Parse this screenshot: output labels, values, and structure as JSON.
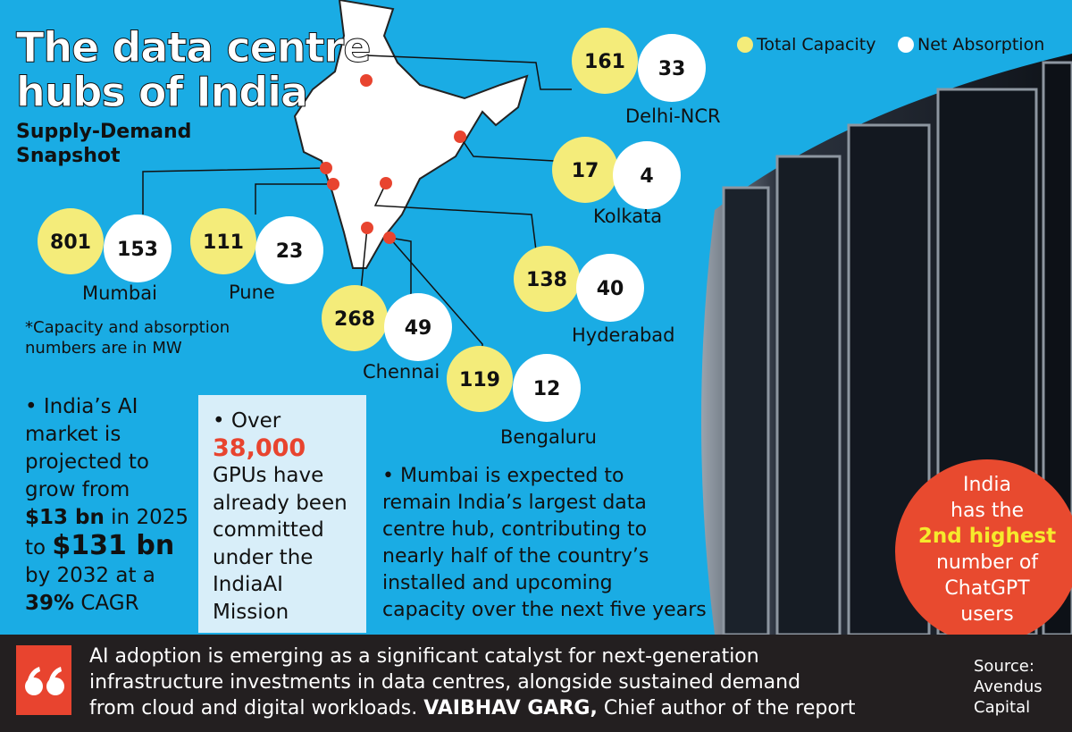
{
  "header": {
    "title_lines": [
      "The data centre",
      "hubs of India"
    ],
    "subtitle_lines": [
      "Supply-Demand",
      "Snapshot"
    ]
  },
  "legend": {
    "total": "Total Capacity",
    "net": "Net Absorption"
  },
  "hubs": [
    {
      "name": "Delhi-NCR",
      "total": 161,
      "net": 33
    },
    {
      "name": "Kolkata",
      "total": 17,
      "net": 4
    },
    {
      "name": "Mumbai",
      "total": 801,
      "net": 153
    },
    {
      "name": "Pune",
      "total": 111,
      "net": 23
    },
    {
      "name": "Hyderabad",
      "total": 138,
      "net": 40
    },
    {
      "name": "Chennai",
      "total": 268,
      "net": 49
    },
    {
      "name": "Bengaluru",
      "total": 119,
      "net": 12
    }
  ],
  "note_lines": [
    "*Capacity and absorption",
    "numbers are in MW"
  ],
  "ai_market": {
    "lines": [
      "• India’s AI",
      "market is",
      "projected to",
      "grow from"
    ],
    "amount_2025": "$13 bn",
    "year_2025": " in 2025",
    "to": "to ",
    "amount_2032": "$131 bn",
    "by": "by 2032 at a",
    "cagr": "39%",
    "cagr_label": " CAGR"
  },
  "gpus": {
    "over": "• Over",
    "count": "38,000",
    "lines": [
      "GPUs have",
      "already been",
      "committed",
      "under the",
      "IndiaAI",
      "Mission"
    ]
  },
  "mumbai_outlook": [
    "• Mumbai is expected to",
    "remain India’s largest data",
    "centre hub, contributing to",
    "nearly half of the country’s",
    "installed and upcoming",
    "capacity over the next five years"
  ],
  "chatgpt": {
    "lines_top": [
      "India",
      "has the"
    ],
    "highlight": "2nd highest",
    "lines_bottom": [
      "number of",
      "ChatGPT",
      "users"
    ]
  },
  "quote": {
    "lines": [
      "AI adoption is emerging as a significant catalyst for next-generation",
      "infrastructure investments in data centres, alongside sustained demand",
      "from cloud and digital workloads."
    ],
    "author": "VAIBHAV GARG,",
    "role": " Chief author of the report"
  },
  "source_lines": [
    "Source:",
    "Avendus",
    "Capital"
  ]
}
